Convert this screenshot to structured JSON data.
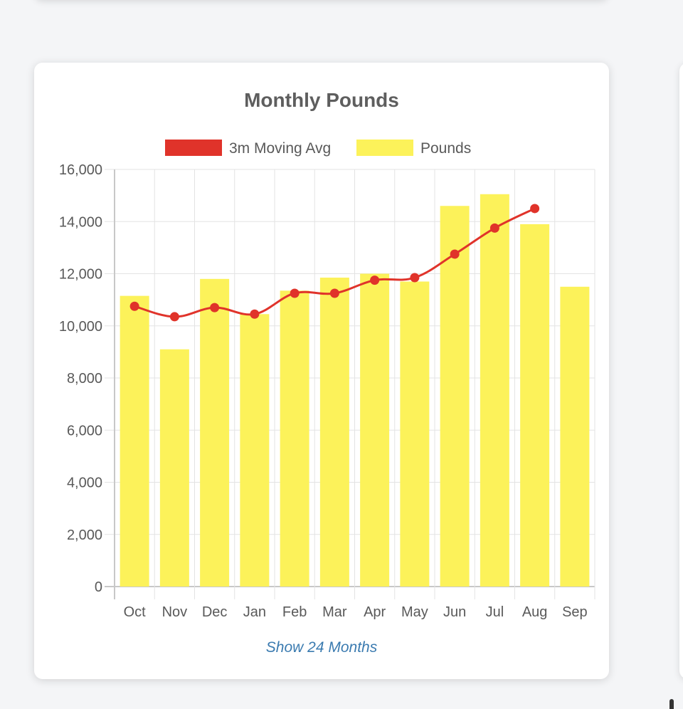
{
  "card": {
    "link_label": "Show 24 Months"
  },
  "colors": {
    "bar": "#fcf25a",
    "line": "#e0332a",
    "text": "#595959",
    "title": "#5e5e5e",
    "grid": "#e3e3e3",
    "link": "#3b7bb0"
  },
  "chart_data": {
    "type": "bar",
    "title": "Monthly Pounds",
    "categories": [
      "Oct",
      "Nov",
      "Dec",
      "Jan",
      "Feb",
      "Mar",
      "Apr",
      "May",
      "Jun",
      "Jul",
      "Aug",
      "Sep"
    ],
    "y_ticks": [
      "0",
      "2,000",
      "4,000",
      "6,000",
      "8,000",
      "10,000",
      "12,000",
      "14,000",
      "16,000"
    ],
    "ylim": [
      0,
      16000
    ],
    "grid": true,
    "legend_position": "top",
    "series": [
      {
        "name": "3m Moving Avg",
        "type": "line",
        "values": [
          10750,
          10350,
          10700,
          10450,
          11250,
          11250,
          11750,
          11850,
          12750,
          13750,
          14500,
          null
        ]
      },
      {
        "name": "Pounds",
        "type": "bar",
        "values": [
          11150,
          9100,
          11800,
          10450,
          11350,
          11850,
          12000,
          11700,
          14600,
          15050,
          13900,
          11500
        ]
      }
    ]
  }
}
